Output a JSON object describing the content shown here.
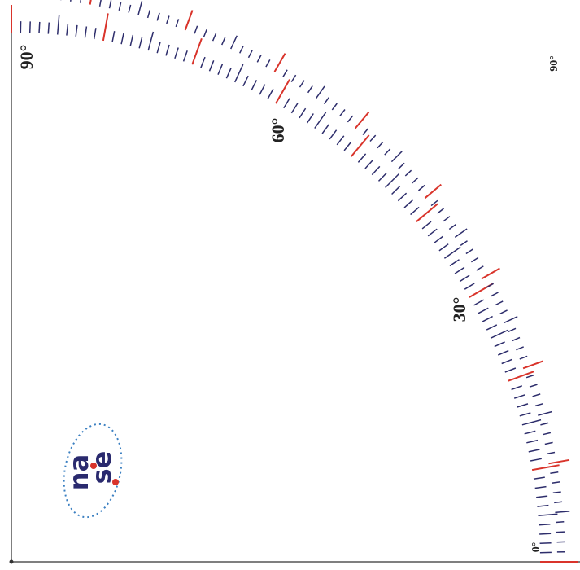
{
  "protractor": {
    "inner_scale": {
      "labels": [
        "30°",
        "60°",
        "90°"
      ]
    },
    "outer_scale": {
      "labels": [
        "0°",
        "90°"
      ]
    },
    "colors": {
      "major_tick": "#d9342b",
      "minor_tick": "#2d2d6b",
      "axis_line": "#555555",
      "logo_navy": "#2a2a6e",
      "logo_dots": "#3a7fc1"
    }
  },
  "logo": {
    "line1": "na",
    "line2": "se"
  }
}
